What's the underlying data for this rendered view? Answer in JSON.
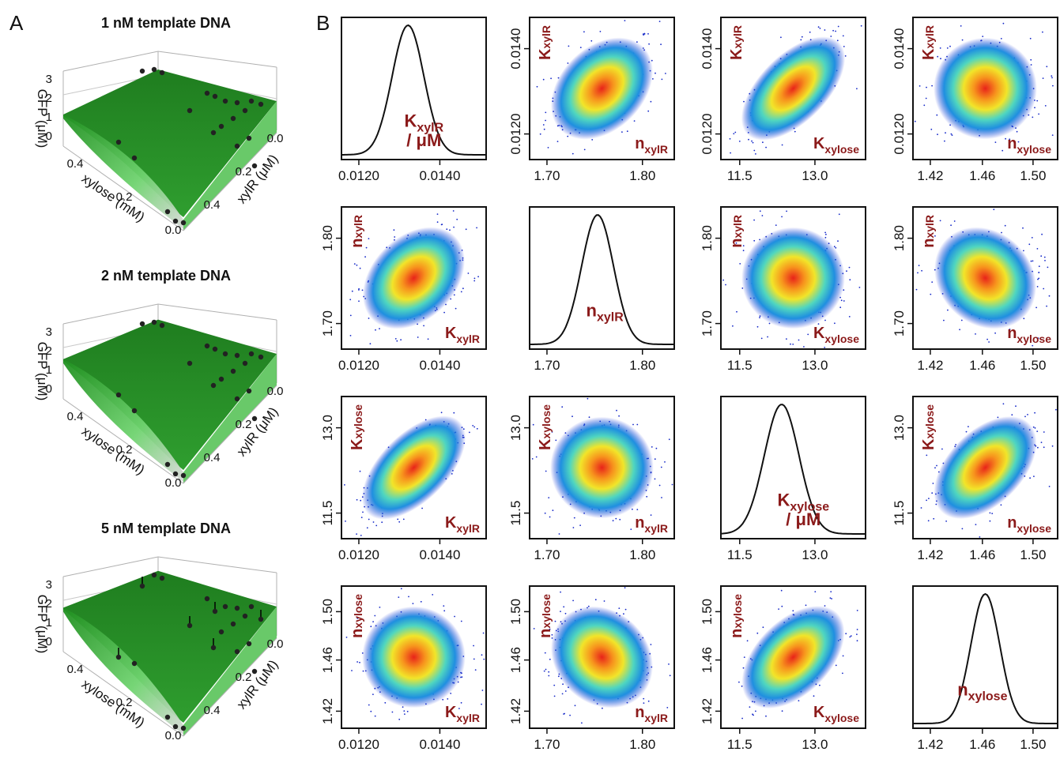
{
  "panel_a": {
    "letter": "A",
    "plots": [
      {
        "title": "1 nM template DNA",
        "z_ticks": [
          "3",
          "2",
          "1",
          "0"
        ],
        "x_ticks": [
          "0.4",
          "0.2",
          "0.0"
        ],
        "y_ticks": [
          "0.0",
          "0.2",
          "0.4"
        ],
        "apex": 1.5
      },
      {
        "title": "2 nM template DNA",
        "z_ticks": [
          "3",
          "2",
          "1",
          "0"
        ],
        "x_ticks": [
          "0.4",
          "0.2",
          "0.0"
        ],
        "y_ticks": [
          "0.0",
          "0.2",
          "0.4"
        ],
        "apex": 2.35
      },
      {
        "title": "5 nM template DNA",
        "z_ticks": [
          "3",
          "2",
          "1",
          "0"
        ],
        "x_ticks": [
          "0.4",
          "0.2",
          "0.0"
        ],
        "y_ticks": [
          "0.0",
          "0.2",
          "0.4"
        ],
        "apex": 2.8
      }
    ],
    "zlabel": "GFP (μM)",
    "xlabel": "xylose (mM)",
    "ylabel": "xylR (μM)",
    "surface_color": "#1e8a1e"
  },
  "panel_b": {
    "letter": "B",
    "params": [
      {
        "base": "K",
        "sub": "xylR",
        "ticks": [
          "0.0120",
          "0.0140"
        ]
      },
      {
        "base": "n",
        "sub": "xylR",
        "ticks": [
          "1.70",
          "1.80"
        ]
      },
      {
        "base": "K",
        "sub": "xylose",
        "ticks": [
          "11.5",
          "13.0"
        ]
      },
      {
        "base": "n",
        "sub": "xylose",
        "ticks": [
          "1.42",
          "1.46",
          "1.50"
        ]
      }
    ],
    "unit_suffix": "/ μM",
    "label_color": "#8b1a1a"
  },
  "chart_data": [
    {
      "type": "scatter",
      "title": "1 nM template DNA",
      "zlabel": "GFP (μM)",
      "xlabel": "xylose (mM)",
      "ylabel": "xylR (μM)",
      "xlim": [
        0,
        0.5
      ],
      "ylim": [
        0,
        0.5
      ],
      "zlim": [
        0,
        3
      ],
      "surface_max_gfp": 1.5
    },
    {
      "type": "scatter",
      "title": "2 nM template DNA",
      "zlabel": "GFP (μM)",
      "xlabel": "xylose (mM)",
      "ylabel": "xylR (μM)",
      "xlim": [
        0,
        0.5
      ],
      "ylim": [
        0,
        0.5
      ],
      "zlim": [
        0,
        3
      ],
      "surface_max_gfp": 2.35
    },
    {
      "type": "scatter",
      "title": "5 nM template DNA",
      "zlabel": "GFP (μM)",
      "xlabel": "xylose (mM)",
      "ylabel": "xylR (μM)",
      "xlim": [
        0,
        0.5
      ],
      "ylim": [
        0,
        0.5
      ],
      "zlim": [
        0,
        3
      ],
      "surface_max_gfp": 2.8
    },
    {
      "type": "scatter",
      "title": "",
      "variables": [
        "KxylR",
        "nxylR",
        "Kxylose",
        "nxylose"
      ],
      "ranges": [
        [
          0.0115,
          0.0152
        ],
        [
          1.68,
          1.85
        ],
        [
          11.0,
          14.3
        ],
        [
          1.41,
          1.53
        ]
      ],
      "means": [
        0.0137,
        1.765,
        12.85,
        1.465
      ],
      "sds": [
        0.00055,
        0.021,
        0.45,
        0.012
      ],
      "correlation": [
        [
          1,
          0.4,
          0.75,
          0.0
        ],
        [
          0.4,
          1,
          0.0,
          -0.2
        ],
        [
          0.75,
          0.0,
          1,
          0.6
        ],
        [
          0.0,
          -0.2,
          0.6,
          1
        ]
      ],
      "diagonal": "marginal density",
      "off_diagonal": "pairwise posterior density scatter"
    }
  ]
}
